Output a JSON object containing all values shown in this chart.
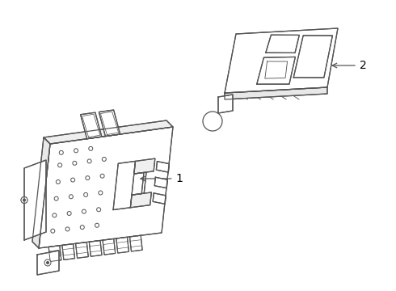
{
  "background_color": "#ffffff",
  "line_color": "#555555",
  "line_width": 0.9,
  "figsize": [
    4.9,
    3.6
  ],
  "dpi": 100,
  "label_fontsize": 10
}
